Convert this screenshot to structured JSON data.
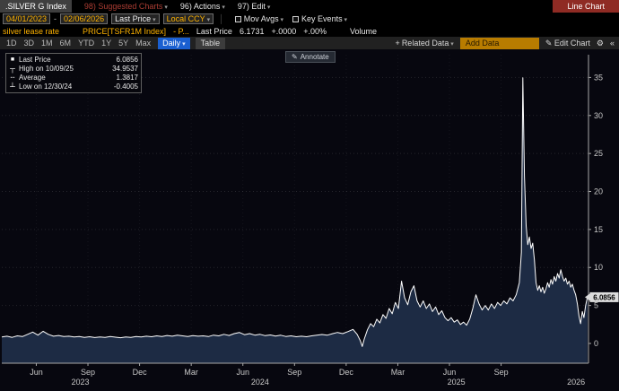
{
  "titlebar": {
    "security": ".SILVER G Index",
    "suggested": "98) Suggested Charts",
    "actions": "96) Actions",
    "edit": "97) Edit",
    "chart_type": "Line Chart"
  },
  "toolbar": {
    "date_start": "04/01/2023",
    "date_end": "02/06/2026",
    "dash": "-",
    "field": "Last Price",
    "currency": "Local CCY",
    "mov_avgs": "Mov Avgs",
    "key_events": "Key Events"
  },
  "security_row": {
    "name": "silver lease rate",
    "formula": "PRICE[TSFR1M Index]",
    "p": "- P...",
    "last_price_label": "Last Price",
    "last_price": "6.1731",
    "change": "+.0000",
    "pct_change": "+.00%",
    "volume_label": "Volume"
  },
  "tabs": {
    "ranges": [
      "1D",
      "3D",
      "1M",
      "6M",
      "YTD",
      "1Y",
      "5Y",
      "Max"
    ],
    "period": "Daily",
    "table": "Table",
    "related": "Related Data",
    "add_data": "Add Data",
    "edit_chart": "Edit Chart",
    "collapse": "«"
  },
  "legend": {
    "last_label": "Last Price",
    "last_value": "6.0856",
    "high_label": "High on 10/09/25",
    "high_value": "34.9537",
    "avg_label": "Average",
    "avg_value": "1.3817",
    "low_label": "Low on 12/30/24",
    "low_value": "-0.4005"
  },
  "annotate_label": "Annotate",
  "chart_data": {
    "type": "area",
    "title": "silver lease rate (.SILVER G Index) — Last Price, Daily, 04/01/2023–02/06/2026",
    "x_range": [
      2023.25,
      2026.09
    ],
    "ylim": [
      -2.6,
      38
    ],
    "yticks": [
      0,
      5,
      10,
      15,
      20,
      25,
      30,
      35
    ],
    "xticks": [
      {
        "x": 2023.417,
        "label": "Jun"
      },
      {
        "x": 2023.667,
        "label": "Sep"
      },
      {
        "x": 2023.917,
        "label": "Dec"
      },
      {
        "x": 2024.167,
        "label": "Mar"
      },
      {
        "x": 2024.417,
        "label": "Jun"
      },
      {
        "x": 2024.667,
        "label": "Sep"
      },
      {
        "x": 2024.917,
        "label": "Dec"
      },
      {
        "x": 2025.167,
        "label": "Mar"
      },
      {
        "x": 2025.417,
        "label": "Jun"
      },
      {
        "x": 2025.667,
        "label": "Sep"
      }
    ],
    "year_labels": [
      {
        "x": 2023.63,
        "label": "2023"
      },
      {
        "x": 2024.5,
        "label": "2024"
      },
      {
        "x": 2025.45,
        "label": "2025"
      },
      {
        "x": 2026.03,
        "label": "2026"
      }
    ],
    "last_value": 6.0856,
    "last_label": "6.0856",
    "high": {
      "date": "10/09/25",
      "value": 34.9537
    },
    "low": {
      "date": "12/30/24",
      "value": -0.4005
    },
    "average": 1.3817,
    "line_color": "#ffffff",
    "fill_color": "#1d2b44",
    "axis_color": "#a8a8a8",
    "grid_color": "rgba(255,255,255,0.12)",
    "series": [
      {
        "name": "Last Price",
        "x": [
          2023.25,
          2023.275,
          2023.3,
          2023.325,
          2023.35,
          2023.375,
          2023.4,
          2023.425,
          2023.45,
          2023.475,
          2023.5,
          2023.525,
          2023.55,
          2023.575,
          2023.6,
          2023.625,
          2023.65,
          2023.675,
          2023.7,
          2023.725,
          2023.75,
          2023.775,
          2023.8,
          2023.825,
          2023.85,
          2023.875,
          2023.9,
          2023.925,
          2023.95,
          2023.975,
          2024.0,
          2024.025,
          2024.05,
          2024.075,
          2024.1,
          2024.125,
          2024.15,
          2024.175,
          2024.2,
          2024.225,
          2024.25,
          2024.275,
          2024.3,
          2024.325,
          2024.35,
          2024.375,
          2024.4,
          2024.425,
          2024.45,
          2024.475,
          2024.5,
          2024.525,
          2024.55,
          2024.575,
          2024.6,
          2024.625,
          2024.65,
          2024.675,
          2024.7,
          2024.725,
          2024.75,
          2024.775,
          2024.8,
          2024.825,
          2024.85,
          2024.875,
          2024.9,
          2024.925,
          2024.95,
          2024.97,
          2024.985,
          2024.995,
          2025.005,
          2025.02,
          2025.035,
          2025.05,
          2025.065,
          2025.08,
          2025.095,
          2025.11,
          2025.125,
          2025.14,
          2025.155,
          2025.17,
          2025.185,
          2025.2,
          2025.215,
          2025.23,
          2025.245,
          2025.26,
          2025.275,
          2025.29,
          2025.305,
          2025.32,
          2025.335,
          2025.35,
          2025.365,
          2025.38,
          2025.395,
          2025.41,
          2025.425,
          2025.44,
          2025.455,
          2025.47,
          2025.485,
          2025.5,
          2025.515,
          2025.53,
          2025.545,
          2025.56,
          2025.575,
          2025.59,
          2025.605,
          2025.62,
          2025.635,
          2025.65,
          2025.665,
          2025.68,
          2025.695,
          2025.71,
          2025.725,
          2025.74,
          2025.755,
          2025.765,
          2025.772,
          2025.78,
          2025.788,
          2025.796,
          2025.804,
          2025.812,
          2025.82,
          2025.828,
          2025.836,
          2025.844,
          2025.852,
          2025.86,
          2025.868,
          2025.876,
          2025.884,
          2025.892,
          2025.9,
          2025.908,
          2025.916,
          2025.924,
          2025.932,
          2025.94,
          2025.948,
          2025.956,
          2025.964,
          2025.972,
          2025.98,
          2025.988,
          2025.996,
          2026.004,
          2026.012,
          2026.02,
          2026.028,
          2026.036,
          2026.044,
          2026.052,
          2026.06,
          2026.068,
          2026.076,
          2026.085
        ],
        "y": [
          0.85,
          0.95,
          0.8,
          1.0,
          0.9,
          1.2,
          1.5,
          1.1,
          1.6,
          1.2,
          0.95,
          1.05,
          0.9,
          0.95,
          0.85,
          0.9,
          0.8,
          0.88,
          0.78,
          0.85,
          0.8,
          0.9,
          0.82,
          0.75,
          0.85,
          0.8,
          0.92,
          0.85,
          0.95,
          0.88,
          1.0,
          0.9,
          1.05,
          0.95,
          1.1,
          1.0,
          0.92,
          1.02,
          0.95,
          1.0,
          0.9,
          1.1,
          1.0,
          1.2,
          1.05,
          1.3,
          1.45,
          1.15,
          1.3,
          1.1,
          1.2,
          1.02,
          1.12,
          0.98,
          1.08,
          0.92,
          1.0,
          0.88,
          0.95,
          0.88,
          1.0,
          1.1,
          1.18,
          1.08,
          1.28,
          1.45,
          1.3,
          1.55,
          1.85,
          1.2,
          0.4,
          -0.4,
          0.6,
          1.8,
          2.6,
          2.2,
          3.2,
          2.7,
          3.8,
          3.3,
          4.6,
          3.9,
          5.4,
          4.6,
          8.2,
          6.0,
          5.1,
          6.8,
          7.6,
          5.6,
          4.8,
          5.6,
          4.6,
          5.2,
          4.2,
          4.8,
          3.8,
          4.3,
          3.4,
          3.0,
          3.4,
          2.8,
          3.1,
          2.5,
          2.8,
          2.4,
          3.2,
          4.6,
          6.4,
          5.2,
          4.4,
          5.0,
          4.4,
          5.2,
          4.6,
          5.4,
          5.0,
          5.6,
          5.2,
          6.0,
          5.6,
          6.4,
          8.0,
          12.0,
          34.95,
          22.0,
          15.5,
          13.0,
          14.0,
          12.5,
          13.2,
          11.0,
          8.0,
          7.0,
          7.6,
          6.8,
          7.4,
          6.6,
          7.2,
          8.0,
          7.4,
          8.4,
          7.8,
          8.8,
          8.2,
          9.2,
          8.6,
          9.7,
          8.8,
          8.2,
          8.6,
          7.8,
          8.2,
          7.4,
          7.8,
          7.0,
          6.4,
          5.2,
          3.6,
          2.6,
          4.2,
          3.4,
          5.0,
          6.0856
        ]
      }
    ]
  }
}
